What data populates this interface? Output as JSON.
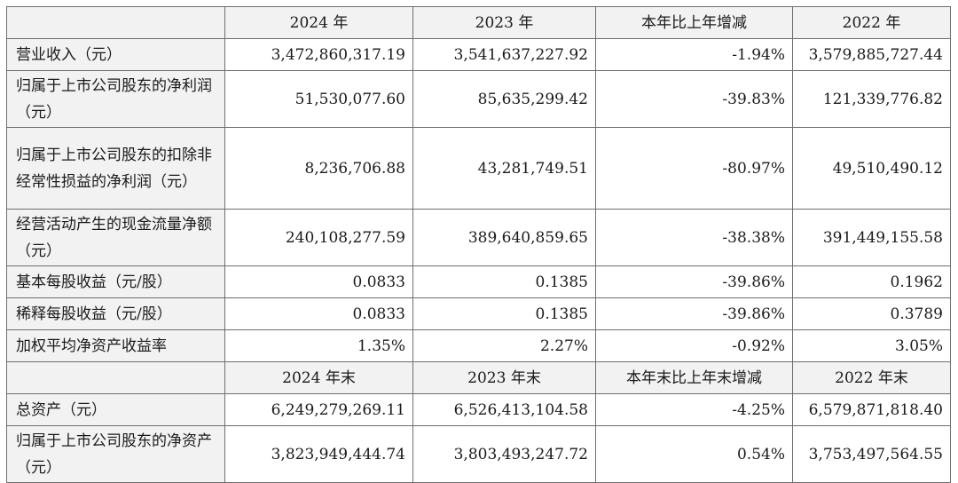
{
  "header1": {
    "c1": "2024 年",
    "c2": "2023 年",
    "c3": "本年比上年增减",
    "c4": "2022 年"
  },
  "header2": {
    "c1": "2024 年末",
    "c2": "2023 年末",
    "c3": "本年末比上年末增减",
    "c4": "2022 年末"
  },
  "rows": [
    {
      "label": "营业收入（元）",
      "v1": "3,472,860,317.19",
      "v2": "3,541,637,227.92",
      "v3": "-1.94%",
      "v4": "3,579,885,727.44"
    },
    {
      "label": "归属于上市公司股东的净利润（元）",
      "v1": "51,530,077.60",
      "v2": "85,635,299.42",
      "v3": "-39.83%",
      "v4": "121,339,776.82"
    },
    {
      "label": "归属于上市公司股东的扣除非经常性损益的净利润（元）",
      "v1": "8,236,706.88",
      "v2": "43,281,749.51",
      "v3": "-80.97%",
      "v4": "49,510,490.12"
    },
    {
      "label": "经营活动产生的现金流量净额（元）",
      "v1": "240,108,277.59",
      "v2": "389,640,859.65",
      "v3": "-38.38%",
      "v4": "391,449,155.58"
    },
    {
      "label": "基本每股收益（元/股）",
      "v1": "0.0833",
      "v2": "0.1385",
      "v3": "-39.86%",
      "v4": "0.1962"
    },
    {
      "label": "稀释每股收益（元/股）",
      "v1": "0.0833",
      "v2": "0.1385",
      "v3": "-39.86%",
      "v4": "0.3789"
    },
    {
      "label": "加权平均净资产收益率",
      "v1": "1.35%",
      "v2": "2.27%",
      "v3": "-0.92%",
      "v4": "3.05%"
    }
  ],
  "rows2": [
    {
      "label": "总资产（元）",
      "v1": "6,249,279,269.11",
      "v2": "6,526,413,104.58",
      "v3": "-4.25%",
      "v4": "6,579,871,818.40"
    },
    {
      "label": "归属于上市公司股东的净资产（元）",
      "v1": "3,823,949,444.74",
      "v2": "3,803,493,247.72",
      "v3": "0.54%",
      "v4": "3,753,497,564.55"
    }
  ]
}
